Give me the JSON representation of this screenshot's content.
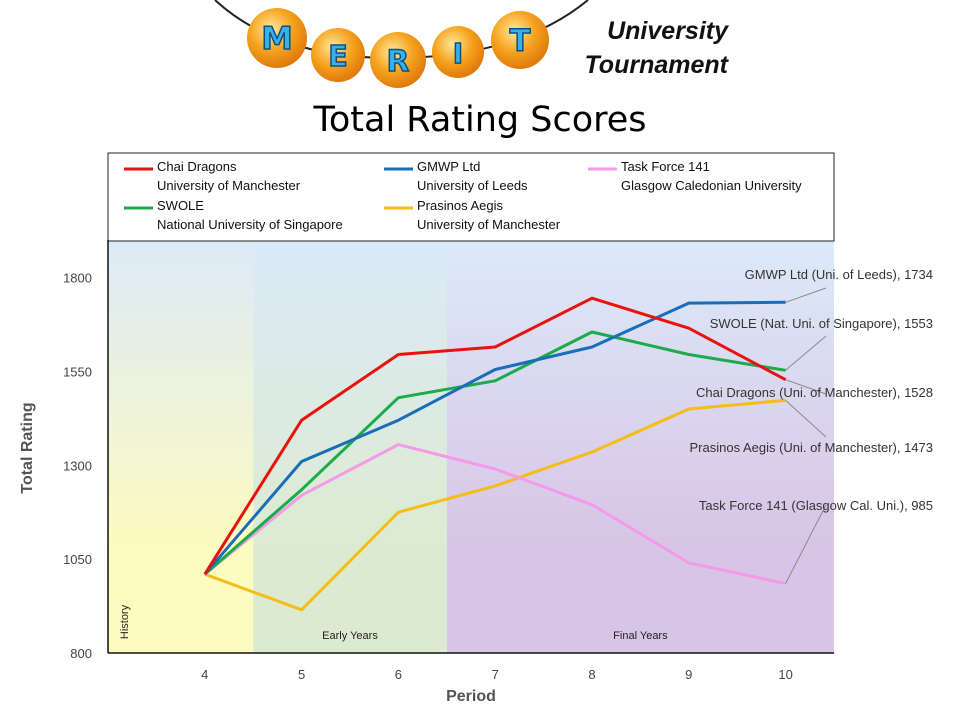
{
  "header": {
    "logo_letters": [
      "M",
      "E",
      "R",
      "I",
      "T"
    ],
    "logo_text": "MERIT",
    "subtitle_line1": "University",
    "subtitle_line2": "Tournament"
  },
  "colors": {
    "chai": "#e8120f",
    "gmwp": "#1a6db8",
    "swole": "#1bab4b",
    "prasinos": "#f5bd16",
    "taskforce": "#f49ae8",
    "history_band": "#fdfbbf",
    "early_band": "#dcebd0",
    "final_band": "#d8c4e6",
    "logo_ball": "#f6a31f"
  },
  "chart_data": {
    "type": "line",
    "title": "Total Rating Scores",
    "xlabel": "Period",
    "ylabel": "Total Rating",
    "x": [
      4,
      5,
      6,
      7,
      8,
      9,
      10
    ],
    "xlim": [
      3,
      10.5
    ],
    "ylim": [
      800,
      1900
    ],
    "yticks": [
      800,
      1050,
      1300,
      1550,
      1800
    ],
    "grid": false,
    "legend_position": "top",
    "bands": [
      {
        "label": "History",
        "from": 3,
        "to": 4.5
      },
      {
        "label": "Early Years",
        "from": 4.5,
        "to": 6.5
      },
      {
        "label": "Final Years",
        "from": 6.5,
        "to": 10.5
      }
    ],
    "series": [
      {
        "key": "chai",
        "name": "Chai Dragons",
        "university": "University of Manchester",
        "values": [
          1010,
          1420,
          1595,
          1615,
          1745,
          1665,
          1528
        ],
        "annotation": "Chai Dragons (Uni. of Manchester), 1528"
      },
      {
        "key": "gmwp",
        "name": "GMWP Ltd",
        "university": "University of Leeds",
        "values": [
          1010,
          1310,
          1420,
          1555,
          1615,
          1732,
          1734
        ],
        "annotation": "GMWP Ltd (Uni. of Leeds), 1734"
      },
      {
        "key": "taskforce",
        "name": "Task Force 141",
        "university": "Glasgow Caledonian University",
        "values": [
          1010,
          1220,
          1355,
          1290,
          1195,
          1040,
          985
        ],
        "annotation": "Task Force 141 (Glasgow Cal. Uni.), 985"
      },
      {
        "key": "swole",
        "name": "SWOLE",
        "university": "National University of Singapore",
        "values": [
          1010,
          1235,
          1480,
          1525,
          1655,
          1595,
          1553
        ],
        "annotation": "SWOLE (Nat. Uni. of Singapore), 1553"
      },
      {
        "key": "prasinos",
        "name": "Prasinos Aegis",
        "university": "University of Manchester",
        "values": [
          1010,
          915,
          1175,
          1245,
          1335,
          1450,
          1473
        ],
        "annotation": "Prasinos Aegis (Uni. of Manchester), 1473"
      }
    ]
  }
}
